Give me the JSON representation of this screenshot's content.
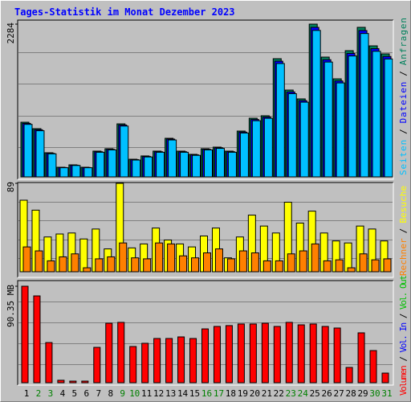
{
  "chart_data": {
    "type": "bar",
    "title": "Tages-Statistik im Monat Dezember 2023",
    "categories": [
      "1",
      "2",
      "3",
      "4",
      "5",
      "6",
      "7",
      "8",
      "9",
      "10",
      "11",
      "12",
      "13",
      "14",
      "15",
      "16",
      "17",
      "18",
      "19",
      "20",
      "21",
      "22",
      "23",
      "24",
      "25",
      "26",
      "27",
      "28",
      "29",
      "30",
      "31"
    ],
    "category_colors": [
      "#000000",
      "#008000",
      "#008000",
      "#000000",
      "#000000",
      "#000000",
      "#000000",
      "#000000",
      "#008000",
      "#008000",
      "#000000",
      "#000000",
      "#000000",
      "#000000",
      "#000000",
      "#008000",
      "#008000",
      "#000000",
      "#000000",
      "#000000",
      "#000000",
      "#000000",
      "#008000",
      "#008000",
      "#000000",
      "#000000",
      "#000000",
      "#000000",
      "#000000",
      "#008000",
      "#008000"
    ],
    "legend_separator": "/",
    "panels": [
      {
        "ylim": [
          0,
          2284
        ],
        "yticks": [
          2284
        ],
        "series": [
          {
            "name": "Anfragen",
            "color": "#00805c",
            "values": [
              817,
              721,
              361,
              144,
              180,
              144,
              385,
              421,
              793,
              264,
              313,
              385,
              577,
              385,
              337,
              421,
              445,
              385,
              685,
              877,
              914,
              1767,
              1298,
              1166,
              2284,
              1791,
              1466,
              1887,
              2236,
              1959,
              1839
            ]
          },
          {
            "name": "Dateien",
            "color": "#0000ff",
            "values": [
              800,
              705,
              352,
              140,
              175,
              140,
              376,
              412,
              776,
              258,
              305,
              376,
              565,
              376,
              329,
              412,
              435,
              376,
              670,
              858,
              894,
              1730,
              1270,
              1140,
              2236,
              1752,
              1434,
              1846,
              2188,
              1917,
              1800
            ]
          },
          {
            "name": "Seiten",
            "color": "#00c0ff",
            "values": [
              785,
              690,
              345,
              137,
              171,
              137,
              368,
              404,
              760,
              252,
              298,
              368,
              552,
              368,
              322,
              404,
              426,
              368,
              656,
              840,
              876,
              1695,
              1244,
              1117,
              2190,
              1717,
              1405,
              1808,
              2144,
              1878,
              1763
            ]
          }
        ]
      },
      {
        "ylim": [
          0,
          89
        ],
        "yticks": [
          89
        ],
        "series": [
          {
            "name": "Besuche",
            "color": "#ffff00",
            "values": [
              72,
              62,
              35,
              38,
              39,
              33,
              43,
              23,
              89,
              24,
              28,
              44,
              32,
              28,
              25,
              36,
              44,
              14,
              35,
              57,
              46,
              39,
              70,
              49,
              61,
              39,
              31,
              29,
              46,
              43,
              31
            ]
          },
          {
            "name": "Rechner",
            "color": "#ff8000",
            "values": [
              25,
              21,
              11,
              15,
              18,
              4,
              13,
              15,
              29,
              14,
              13,
              29,
              28,
              16,
              14,
              19,
              23,
              13,
              21,
              19,
              11,
              11,
              18,
              21,
              28,
              11,
              12,
              4,
              18,
              12,
              13
            ]
          }
        ]
      },
      {
        "ylim": [
          0,
          90.35
        ],
        "yticks": [
          {
            "value": 90.35,
            "label": "90.35 MB"
          }
        ],
        "series": [
          {
            "name": "Vol. Out",
            "color": "#00c000",
            "values": [
              null,
              null,
              null,
              null,
              null,
              null,
              null,
              null,
              null,
              null,
              null,
              null,
              null,
              null,
              null,
              null,
              null,
              null,
              null,
              null,
              null,
              null,
              null,
              null,
              null,
              null,
              null,
              null,
              null,
              null,
              null
            ]
          },
          {
            "name": "Vol. In",
            "color": "#0000ff",
            "values": [
              null,
              null,
              null,
              null,
              null,
              null,
              null,
              null,
              null,
              null,
              null,
              null,
              null,
              null,
              null,
              null,
              null,
              null,
              null,
              null,
              null,
              null,
              null,
              null,
              null,
              null,
              null,
              null,
              null,
              null,
              null
            ]
          },
          {
            "name": "Volumen",
            "color": "#ff0000",
            "values": [
              90.35,
              81.3,
              37.6,
              2.3,
              1.5,
              1.5,
              33.1,
              55.7,
              56.5,
              33.9,
              36.9,
              41.4,
              41.4,
              42.9,
              41.4,
              50.4,
              52.7,
              53.5,
              55,
              55,
              55.7,
              52.7,
              56.5,
              54.2,
              55,
              52.7,
              51.2,
              14.3,
              46.7,
              30.1,
              9
            ]
          }
        ]
      }
    ]
  }
}
